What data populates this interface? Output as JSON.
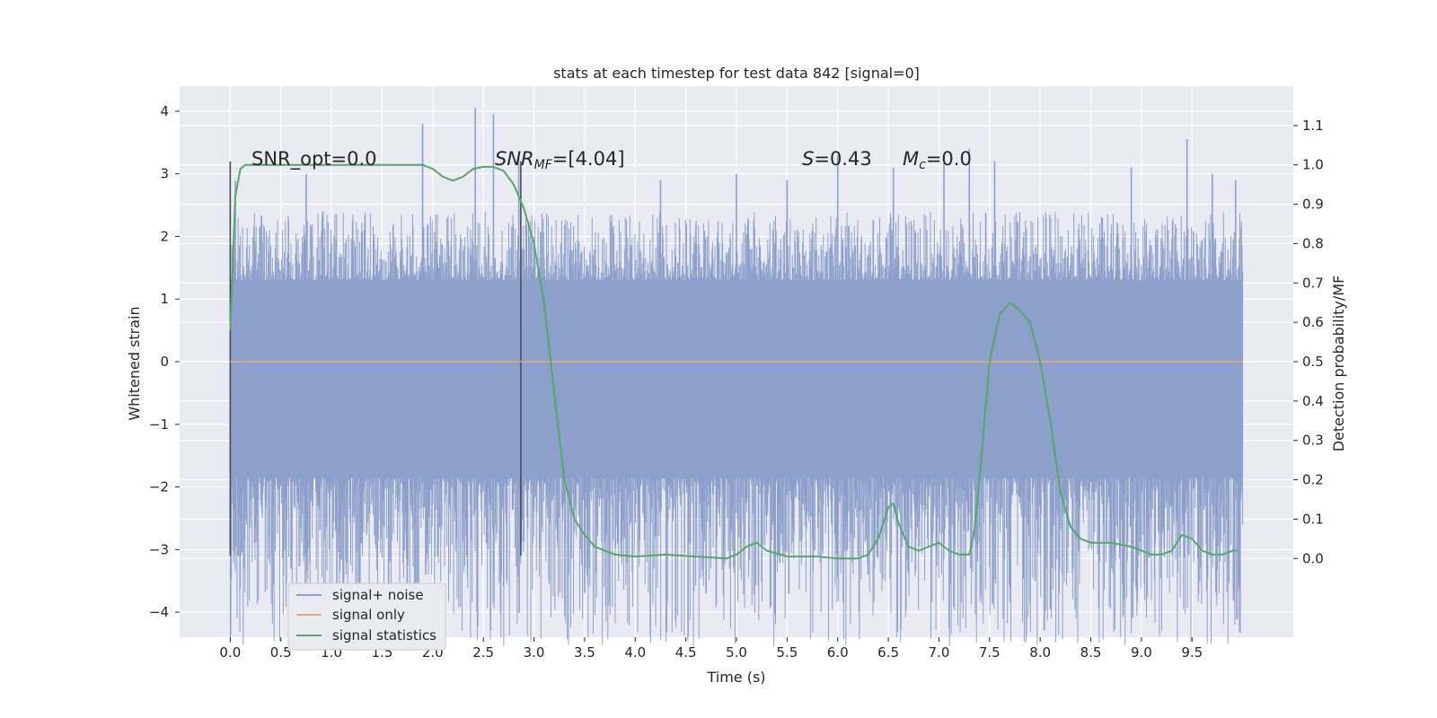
{
  "chart_data": {
    "type": "line",
    "title": "stats at each timestep for test data 842 [signal=0]",
    "xlabel": "Time (s)",
    "ylabel_left": "Whitened strain",
    "ylabel_right": "Detection probability/MF",
    "xlim": [
      -0.5,
      10.5
    ],
    "ylim_left": [
      -4.4,
      4.4
    ],
    "ylim_right": [
      -0.2,
      1.2
    ],
    "x_ticks": [
      0.0,
      0.5,
      1.0,
      1.5,
      2.0,
      2.5,
      3.0,
      3.5,
      4.0,
      4.5,
      5.0,
      5.5,
      6.0,
      6.5,
      7.0,
      7.5,
      8.0,
      8.5,
      9.0,
      9.5
    ],
    "x_tick_labels": [
      "0.0",
      "0.5",
      "1.0",
      "1.5",
      "2.0",
      "2.5",
      "3.0",
      "3.5",
      "4.0",
      "4.5",
      "5.0",
      "5.5",
      "6.0",
      "6.5",
      "7.0",
      "7.5",
      "8.0",
      "8.5",
      "9.0",
      "9.5"
    ],
    "y_left_ticks": [
      4,
      3,
      2,
      1,
      0,
      -1,
      -2,
      -3,
      -4
    ],
    "y_left_tick_labels": [
      "4",
      "3",
      "2",
      "1",
      "0",
      "−1",
      "−2",
      "−3",
      "−4"
    ],
    "y_right_ticks": [
      1.1,
      1.0,
      0.9,
      0.8,
      0.7,
      0.6,
      0.5,
      0.4,
      0.3,
      0.2,
      0.1,
      0.0
    ],
    "y_right_tick_labels": [
      "1.1",
      "1.0",
      "0.9",
      "0.8",
      "0.7",
      "0.6",
      "0.5",
      "0.4",
      "0.3",
      "0.2",
      "0.1",
      "0.0"
    ],
    "grid": true,
    "legend_placement": "lower-left",
    "annotations": {
      "snr_opt": "SNR_opt=0.0",
      "snr_mf_base": "SNR",
      "snr_mf_sub": "MF",
      "snr_mf_value": "=[4.04]",
      "s_label": "S",
      "s_value": "=0.43",
      "mc_base": "M",
      "mc_sub": "c",
      "mc_value": "=0.0"
    },
    "vertical_markers": [
      {
        "x": 0.0,
        "y_min": -3.1,
        "y_max": 3.2
      },
      {
        "x": 2.87,
        "y_min": -3.1,
        "y_max": 3.2
      }
    ],
    "series": [
      {
        "name": "signal+ noise",
        "color": "#8da0cb",
        "description_kind": "noisy strain",
        "x_range": [
          0.0,
          10.0
        ],
        "core_band": [
          -1.85,
          1.3
        ],
        "typical_peak": 2.4,
        "spikes": [
          [
            0.05,
            2.9
          ],
          [
            0.08,
            -3.1
          ],
          [
            0.6,
            -3.3
          ],
          [
            0.75,
            3.0
          ],
          [
            1.3,
            -2.9
          ],
          [
            1.9,
            3.8
          ],
          [
            1.93,
            -3.4
          ],
          [
            2.42,
            4.05
          ],
          [
            2.6,
            3.95
          ],
          [
            2.7,
            -3.6
          ],
          [
            2.85,
            3.3
          ],
          [
            3.5,
            -3.7
          ],
          [
            4.25,
            2.9
          ],
          [
            4.7,
            -3.7
          ],
          [
            5.0,
            3.0
          ],
          [
            5.5,
            2.9
          ],
          [
            6.0,
            3.3
          ],
          [
            6.3,
            -3.4
          ],
          [
            6.55,
            3.1
          ],
          [
            7.05,
            3.3
          ],
          [
            7.3,
            3.4
          ],
          [
            7.55,
            3.2
          ],
          [
            7.95,
            -3.5
          ],
          [
            8.1,
            -3.95
          ],
          [
            8.9,
            3.1
          ],
          [
            9.05,
            -3.2
          ],
          [
            9.45,
            3.55
          ],
          [
            9.7,
            3.0
          ],
          [
            9.93,
            2.9
          ]
        ]
      },
      {
        "name": "signal only",
        "color": "#e8a883",
        "x": [
          0.0,
          10.0
        ],
        "y": [
          0.0,
          0.0
        ]
      },
      {
        "name": "signal statistics",
        "color": "#55a868",
        "axis": "right",
        "x": [
          0.0,
          0.05,
          0.1,
          0.15,
          0.2,
          0.3,
          0.5,
          1.0,
          1.5,
          1.9,
          2.0,
          2.1,
          2.2,
          2.3,
          2.4,
          2.5,
          2.6,
          2.7,
          2.8,
          2.9,
          3.0,
          3.1,
          3.2,
          3.3,
          3.4,
          3.5,
          3.6,
          3.7,
          3.8,
          4.0,
          4.3,
          4.6,
          4.9,
          5.0,
          5.1,
          5.2,
          5.3,
          5.5,
          5.8,
          6.0,
          6.2,
          6.3,
          6.4,
          6.5,
          6.55,
          6.6,
          6.7,
          6.8,
          6.9,
          7.0,
          7.1,
          7.2,
          7.3,
          7.35,
          7.4,
          7.5,
          7.6,
          7.7,
          7.8,
          7.9,
          8.0,
          8.1,
          8.2,
          8.3,
          8.4,
          8.5,
          8.7,
          8.9,
          9.1,
          9.2,
          9.3,
          9.4,
          9.5,
          9.6,
          9.7,
          9.8,
          9.9,
          9.95
        ],
        "y": [
          0.58,
          0.92,
          0.99,
          1.0,
          1.0,
          1.0,
          1.0,
          1.0,
          1.0,
          1.0,
          0.99,
          0.97,
          0.96,
          0.97,
          0.99,
          0.995,
          0.995,
          0.985,
          0.95,
          0.89,
          0.8,
          0.65,
          0.42,
          0.2,
          0.1,
          0.06,
          0.03,
          0.02,
          0.01,
          0.005,
          0.01,
          0.005,
          0.0,
          0.01,
          0.03,
          0.04,
          0.02,
          0.005,
          0.005,
          0.0,
          0.0,
          0.01,
          0.05,
          0.13,
          0.14,
          0.09,
          0.03,
          0.02,
          0.03,
          0.04,
          0.02,
          0.01,
          0.01,
          0.07,
          0.2,
          0.5,
          0.62,
          0.65,
          0.63,
          0.6,
          0.5,
          0.35,
          0.17,
          0.08,
          0.05,
          0.04,
          0.04,
          0.03,
          0.01,
          0.01,
          0.02,
          0.06,
          0.05,
          0.02,
          0.01,
          0.01,
          0.02,
          0.02
        ]
      }
    ]
  }
}
